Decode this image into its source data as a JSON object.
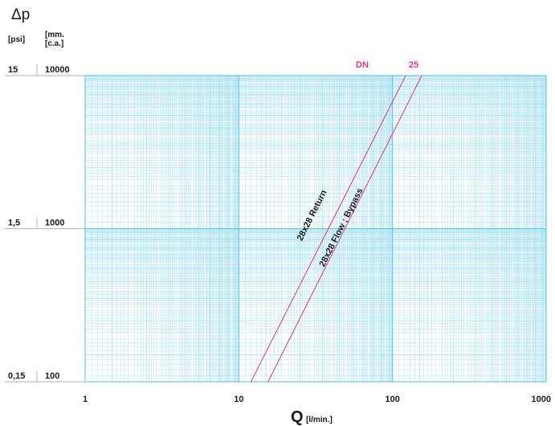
{
  "header": {
    "delta_p": "Δp",
    "unit_psi": "[psi]",
    "unit_mm_line1": "[mm.",
    "unit_mm_line2": "[c.a.]"
  },
  "y_ticks": [
    {
      "psi": "15",
      "mm": "10000",
      "value": 10000
    },
    {
      "psi": "1,5",
      "mm": "1000",
      "value": 1000
    },
    {
      "psi": "0,15",
      "mm": "100",
      "value": 100
    }
  ],
  "x_ticks": [
    {
      "label": "1",
      "value": 1
    },
    {
      "label": "10",
      "value": 10
    },
    {
      "label": "100",
      "value": 100
    },
    {
      "label": "1000",
      "value": 1000
    }
  ],
  "x_axis": {
    "q": "Q",
    "unit": "[l/min.]"
  },
  "dn": {
    "label": "DN",
    "value": "25"
  },
  "colors": {
    "grid": "#4cc6e0",
    "grid_minor": "#aee3f0",
    "line": "#e8318a",
    "text": "#1a1a1a"
  },
  "chart_data": {
    "type": "line",
    "x_scale": "log",
    "y_scale": "log",
    "xlim": [
      1,
      1000
    ],
    "ylim": [
      100,
      10000
    ],
    "xlabel": "Q [l/min.]",
    "ylabel": "Δp [psi] [mm. c.a.]",
    "grid": true,
    "series": [
      {
        "name": "28x28 Return",
        "x": [
          12,
          122
        ],
        "y": [
          100,
          10000
        ]
      },
      {
        "name": "28x28 Flow ; Bypass",
        "x": [
          15.5,
          155
        ],
        "y": [
          100,
          10000
        ]
      }
    ]
  }
}
